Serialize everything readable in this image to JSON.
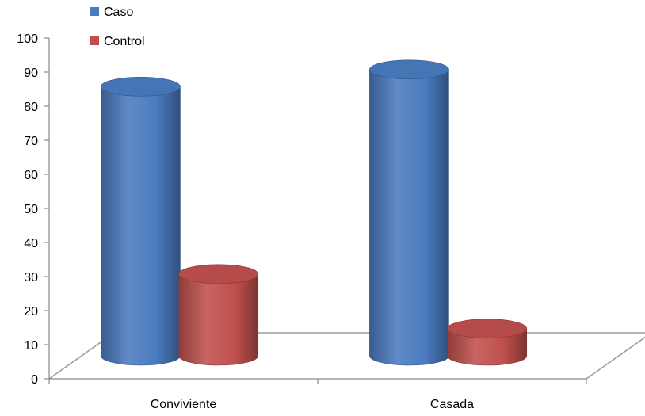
{
  "chart_data": {
    "type": "bar",
    "style": "3d-cylinder",
    "title": "",
    "xlabel": "",
    "ylabel": "",
    "categories": [
      "Conviviente",
      "Casada"
    ],
    "series": [
      {
        "name": "Caso",
        "color": "#4a7bbf",
        "values": [
          79,
          84
        ]
      },
      {
        "name": "Control",
        "color": "#c0504d",
        "values": [
          24,
          8
        ]
      }
    ],
    "ylim": [
      0,
      100
    ],
    "yticks": [
      "0",
      "10",
      "20",
      "30",
      "40",
      "50",
      "60",
      "70",
      "80",
      "90",
      "100"
    ],
    "grid": false,
    "legend_position": "top-left"
  }
}
